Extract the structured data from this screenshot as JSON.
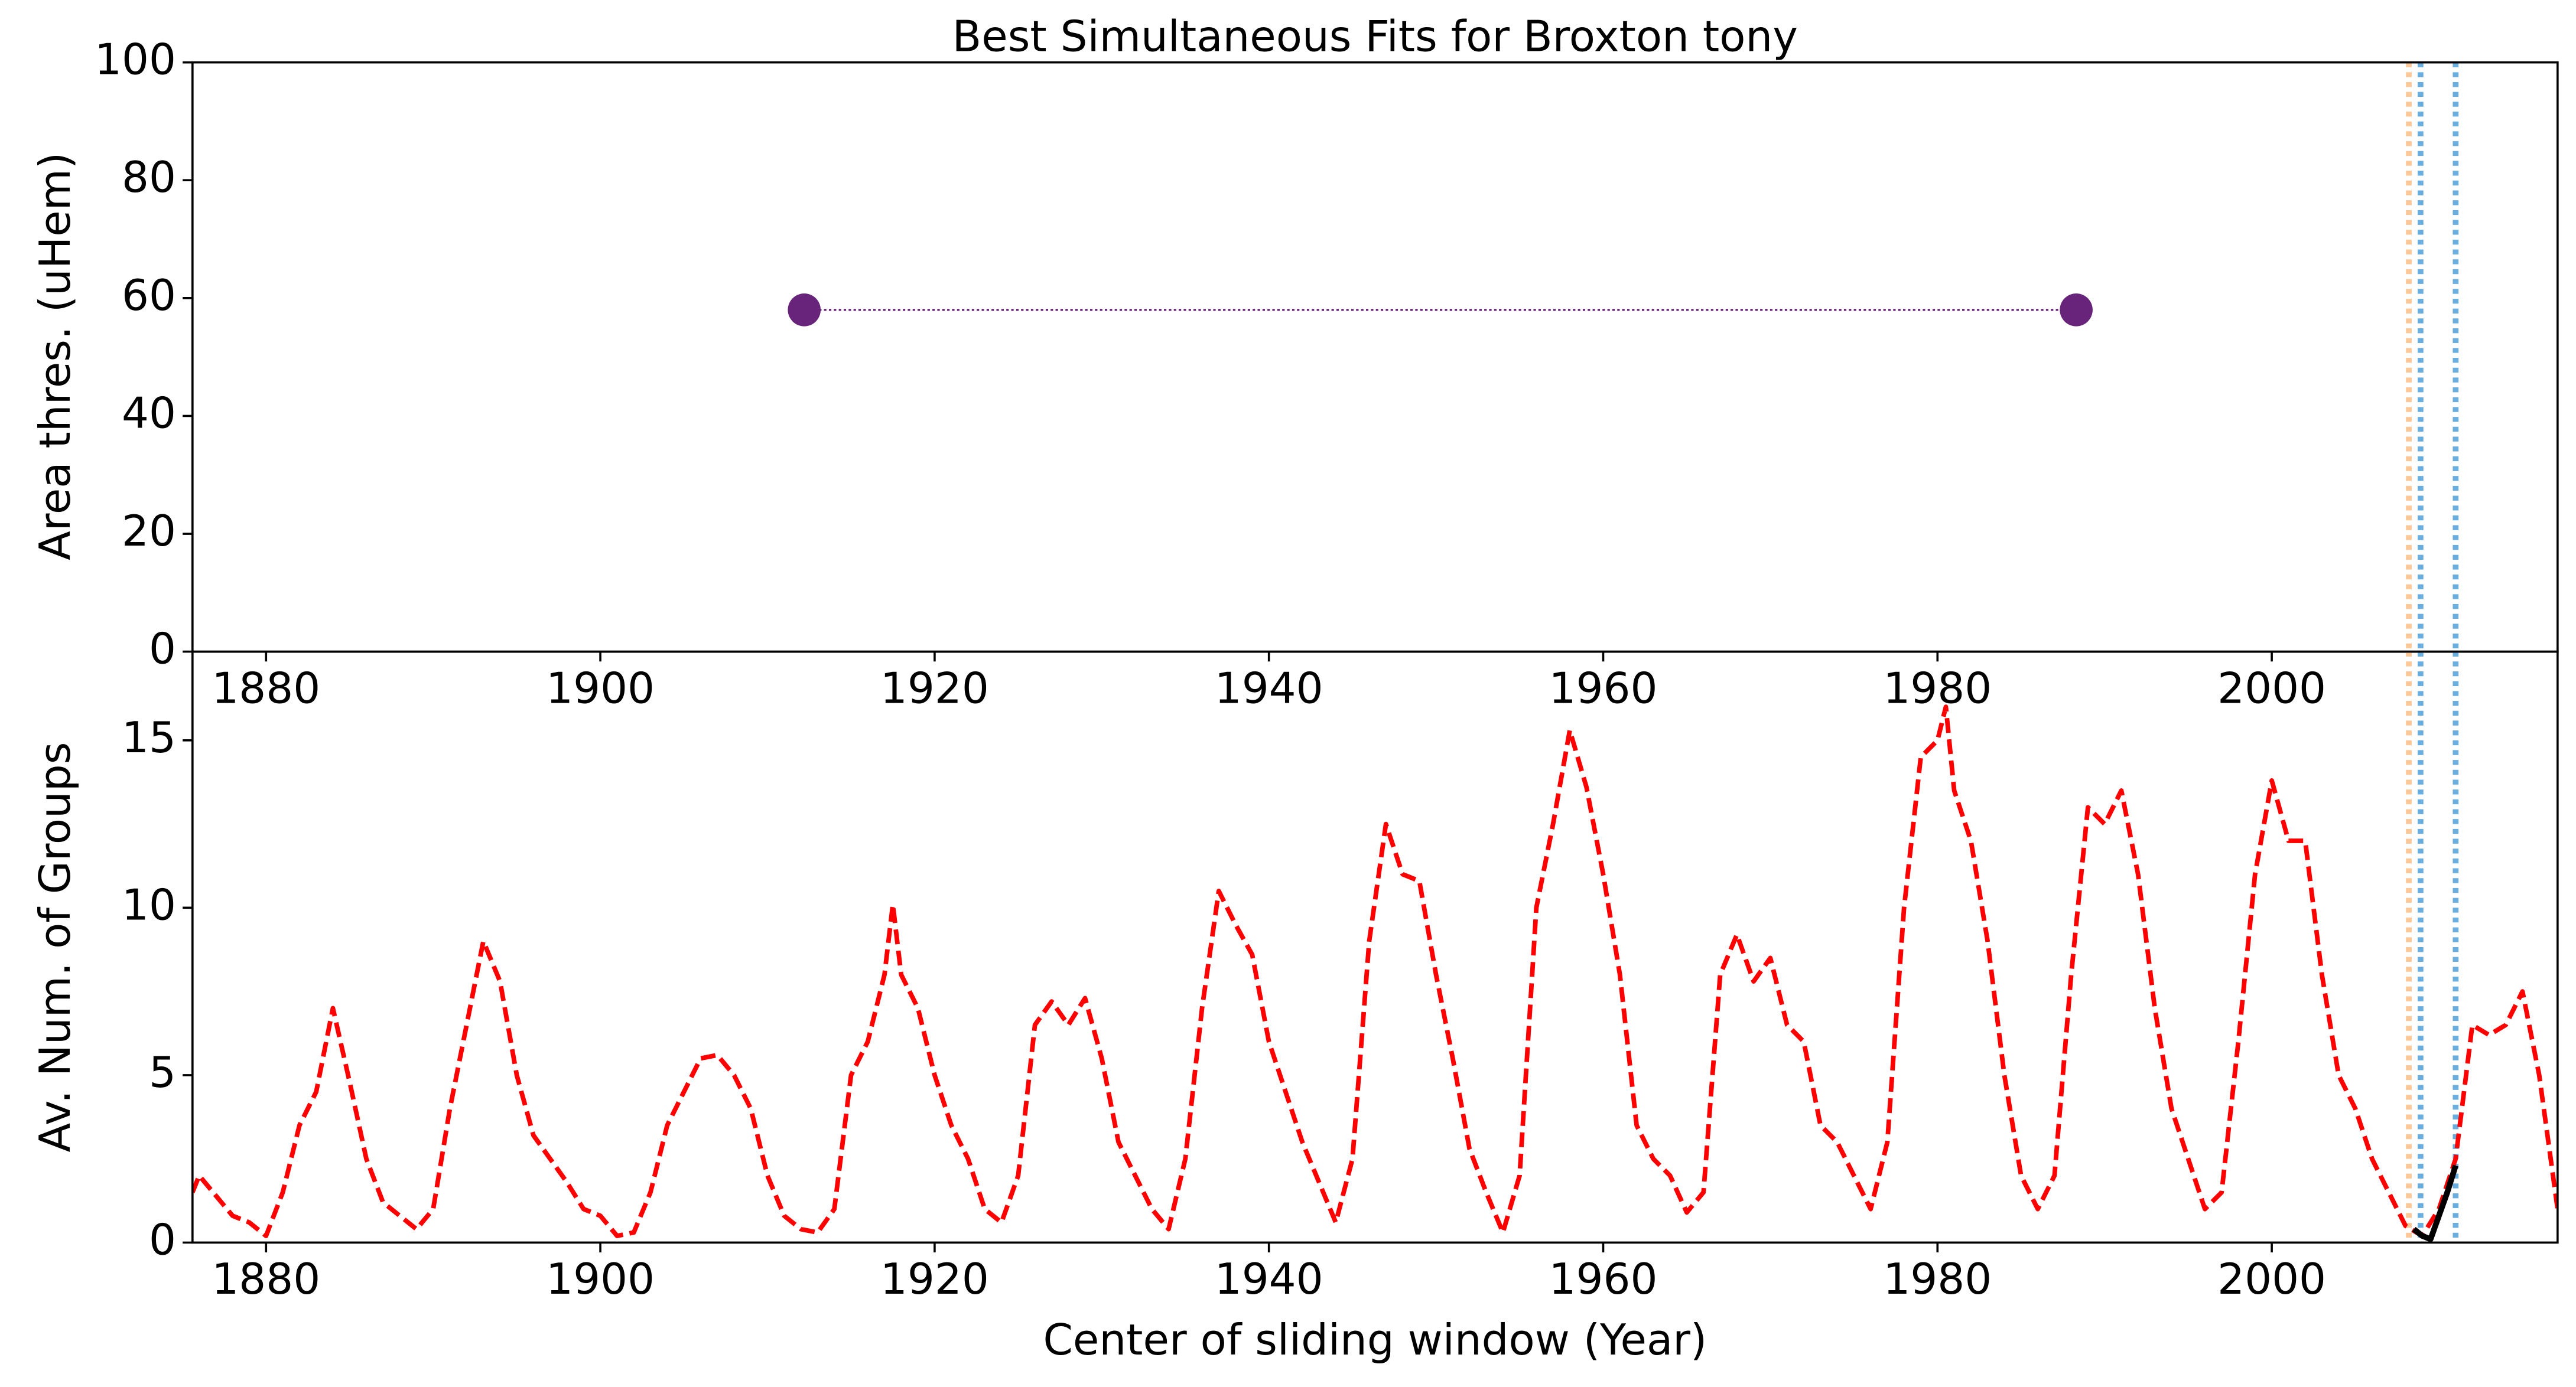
{
  "chart_data": [
    {
      "type": "scatter",
      "title": "Best Simultaneous Fits for Broxton tony",
      "ylabel": "Area thres. (uHem)",
      "xlim": [
        1875.6,
        2017.1
      ],
      "xticks": [
        1880,
        1900,
        1920,
        1940,
        1960,
        1980,
        2000
      ],
      "ylim": [
        0,
        100
      ],
      "yticks": [
        0,
        20,
        40,
        60,
        80,
        100
      ],
      "series": [
        {
          "color": "#68247a",
          "x": [
            1912.2,
            1988.3
          ],
          "values": [
            58,
            58
          ]
        }
      ],
      "vlines": [
        {
          "x": 2008.2,
          "color": "#fdc897"
        },
        {
          "x": 2008.9,
          "color": "#6aaee0"
        },
        {
          "x": 2011.0,
          "color": "#6aaee0"
        }
      ]
    },
    {
      "type": "line",
      "xlabel": "Center of sliding window (Year)",
      "ylabel": "Av. Num. of Groups",
      "xlim": [
        1875.6,
        2017.1
      ],
      "xticks": [
        1880,
        1900,
        1920,
        1940,
        1960,
        1980,
        2000
      ],
      "ylim": [
        0,
        17.65
      ],
      "yticks": [
        0,
        5,
        10,
        15
      ],
      "series": [
        {
          "color": "#ff0000",
          "dash": "dashed",
          "x": [
            1875.6,
            1876,
            1877,
            1878,
            1879,
            1880,
            1881,
            1882,
            1883,
            1884,
            1885,
            1886,
            1887,
            1888,
            1889,
            1890,
            1891,
            1892,
            1893,
            1894,
            1895,
            1896,
            1897,
            1898,
            1899,
            1900,
            1901,
            1902,
            1903,
            1904,
            1905,
            1906,
            1907,
            1908,
            1909,
            1910,
            1911,
            1912,
            1913,
            1914,
            1915,
            1916,
            1917,
            1917.5,
            1918,
            1919,
            1920,
            1921,
            1922,
            1923,
            1924,
            1925,
            1926,
            1927,
            1928,
            1929,
            1930,
            1931,
            1932,
            1933,
            1934,
            1935,
            1936,
            1937,
            1938,
            1939,
            1940,
            1941,
            1942,
            1943,
            1944,
            1945,
            1946,
            1947,
            1948,
            1949,
            1950,
            1951,
            1952,
            1953,
            1954,
            1955,
            1956,
            1957,
            1958,
            1959,
            1960,
            1961,
            1962,
            1963,
            1964,
            1965,
            1966,
            1967,
            1968,
            1969,
            1970,
            1971,
            1972,
            1973,
            1974,
            1975,
            1976,
            1977,
            1978,
            1979,
            1980,
            1980.5,
            1981,
            1982,
            1983,
            1984,
            1985,
            1986,
            1987,
            1988,
            1989,
            1990,
            1991,
            1992,
            1993,
            1994,
            1995,
            1996,
            1997,
            1998,
            1999,
            2000,
            2001,
            2002,
            2003,
            2004,
            2005,
            2006,
            2007,
            2008,
            2009,
            2010,
            2011,
            2012,
            2013,
            2014,
            2015,
            2016,
            2017.1
          ],
          "values": [
            1.5,
            2.0,
            1.4,
            0.8,
            0.6,
            0.2,
            1.5,
            3.5,
            4.5,
            7.0,
            4.8,
            2.5,
            1.2,
            0.8,
            0.4,
            1.0,
            4.0,
            6.5,
            9.0,
            7.8,
            5.0,
            3.2,
            2.5,
            1.8,
            1.0,
            0.8,
            0.2,
            0.3,
            1.5,
            3.5,
            4.5,
            5.5,
            5.6,
            5.0,
            4.0,
            2.0,
            0.8,
            0.4,
            0.3,
            1.0,
            5.0,
            6.0,
            8.0,
            10.1,
            8.0,
            7.0,
            5.0,
            3.5,
            2.5,
            1.0,
            0.6,
            2.0,
            6.5,
            7.2,
            6.5,
            7.3,
            5.5,
            3.0,
            2.0,
            1.0,
            0.4,
            2.5,
            7.0,
            10.5,
            9.5,
            8.6,
            6.0,
            4.5,
            3.0,
            1.8,
            0.6,
            2.5,
            9.0,
            12.5,
            11.0,
            10.8,
            8.0,
            5.5,
            2.8,
            1.5,
            0.3,
            2.0,
            10.0,
            12.5,
            15.3,
            13.6,
            11.0,
            8.0,
            3.5,
            2.5,
            2.0,
            0.9,
            1.5,
            8.0,
            9.2,
            7.8,
            8.5,
            6.5,
            6.0,
            3.5,
            3.0,
            2.0,
            1.0,
            3.0,
            10.0,
            14.5,
            15.0,
            16.0,
            13.5,
            12.0,
            9.0,
            5.0,
            2.0,
            1.0,
            2.0,
            8.0,
            13.0,
            12.5,
            13.5,
            11.0,
            7.0,
            4.0,
            2.5,
            1.0,
            1.5,
            6.0,
            11.0,
            13.8,
            12.0,
            12.0,
            8.0,
            5.0,
            4.0,
            2.5,
            1.5,
            0.5,
            0.2,
            1.0,
            2.5,
            6.5,
            6.2,
            6.5,
            7.5,
            5.0,
            1.0
          ]
        },
        {
          "color": "#000000",
          "dash": "solid",
          "x": [
            2008.5,
            2009,
            2009.5,
            2010,
            2010.5,
            2011
          ],
          "values": [
            0.4,
            0.2,
            0.1,
            0.8,
            1.5,
            2.3
          ]
        }
      ],
      "vlines": [
        {
          "x": 2008.2,
          "color": "#fdc897"
        },
        {
          "x": 2008.9,
          "color": "#6aaee0"
        },
        {
          "x": 2011.0,
          "color": "#6aaee0"
        }
      ]
    }
  ]
}
